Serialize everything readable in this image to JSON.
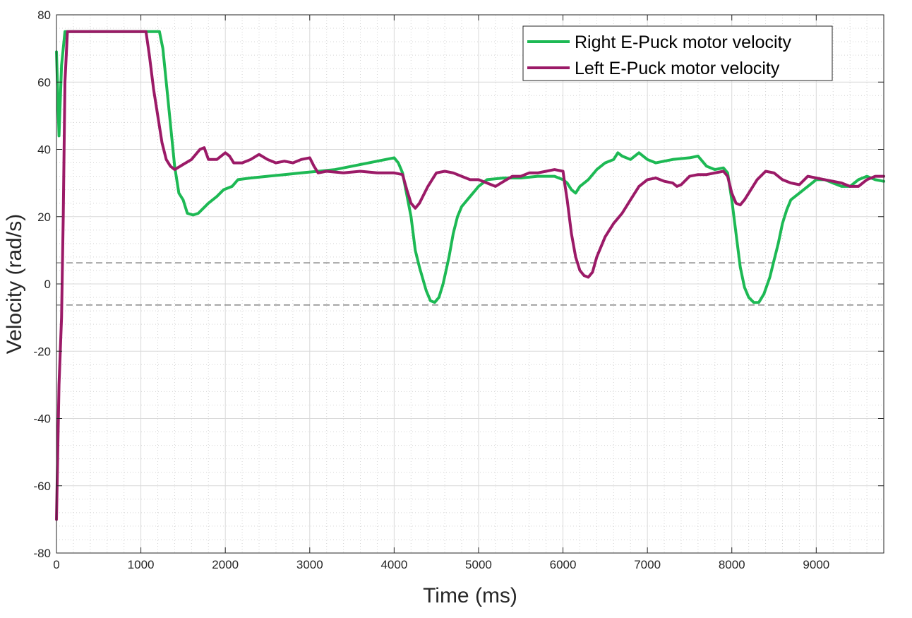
{
  "chart_data": {
    "type": "line",
    "title": "",
    "xlabel": "Time (ms)",
    "ylabel": "Velocity (rad/s)",
    "xlim": [
      0,
      9800
    ],
    "ylim": [
      -80,
      80
    ],
    "x_ticks": [
      0,
      1000,
      2000,
      3000,
      4000,
      5000,
      6000,
      7000,
      8000,
      9000
    ],
    "y_ticks": [
      -80,
      -60,
      -40,
      -20,
      0,
      20,
      40,
      60,
      80
    ],
    "grid": true,
    "minor_grid": true,
    "legend_position": "top-right",
    "reference_lines": [
      6.28,
      -6.28
    ],
    "reference_line_color": "#6e6e6e",
    "series": [
      {
        "name": "Right E-Puck motor velocity",
        "color": "#1db954",
        "points": [
          [
            0,
            69
          ],
          [
            30,
            44
          ],
          [
            60,
            65
          ],
          [
            100,
            75
          ],
          [
            1220,
            75
          ],
          [
            1260,
            70
          ],
          [
            1320,
            55
          ],
          [
            1400,
            35
          ],
          [
            1450,
            27
          ],
          [
            1500,
            25
          ],
          [
            1550,
            21
          ],
          [
            1620,
            20.5
          ],
          [
            1680,
            21
          ],
          [
            1720,
            22
          ],
          [
            1800,
            24
          ],
          [
            1900,
            26
          ],
          [
            1980,
            28
          ],
          [
            2080,
            29
          ],
          [
            2150,
            31
          ],
          [
            2300,
            31.5
          ],
          [
            2500,
            32
          ],
          [
            2700,
            32.5
          ],
          [
            2900,
            33
          ],
          [
            3100,
            33.5
          ],
          [
            3300,
            34
          ],
          [
            3500,
            35
          ],
          [
            3700,
            36
          ],
          [
            3900,
            37
          ],
          [
            4000,
            37.5
          ],
          [
            4050,
            36
          ],
          [
            4100,
            33
          ],
          [
            4200,
            20
          ],
          [
            4250,
            10
          ],
          [
            4300,
            5
          ],
          [
            4380,
            -2
          ],
          [
            4430,
            -5
          ],
          [
            4480,
            -5.5
          ],
          [
            4530,
            -4
          ],
          [
            4580,
            0
          ],
          [
            4650,
            8
          ],
          [
            4700,
            15
          ],
          [
            4750,
            20
          ],
          [
            4800,
            23
          ],
          [
            4900,
            26
          ],
          [
            5000,
            29
          ],
          [
            5100,
            31
          ],
          [
            5300,
            31.5
          ],
          [
            5500,
            31.5
          ],
          [
            5700,
            32
          ],
          [
            5900,
            32
          ],
          [
            6000,
            31
          ],
          [
            6050,
            30
          ],
          [
            6100,
            28
          ],
          [
            6150,
            27
          ],
          [
            6200,
            29
          ],
          [
            6300,
            31
          ],
          [
            6400,
            34
          ],
          [
            6500,
            36
          ],
          [
            6600,
            37
          ],
          [
            6650,
            39
          ],
          [
            6700,
            38
          ],
          [
            6800,
            37
          ],
          [
            6900,
            39
          ],
          [
            7000,
            37
          ],
          [
            7100,
            36
          ],
          [
            7300,
            37
          ],
          [
            7500,
            37.5
          ],
          [
            7600,
            38
          ],
          [
            7700,
            35
          ],
          [
            7800,
            34
          ],
          [
            7900,
            34.5
          ],
          [
            7950,
            33
          ],
          [
            8000,
            25
          ],
          [
            8050,
            15
          ],
          [
            8100,
            5
          ],
          [
            8150,
            -1
          ],
          [
            8200,
            -4
          ],
          [
            8260,
            -5.5
          ],
          [
            8320,
            -5.5
          ],
          [
            8380,
            -3
          ],
          [
            8450,
            2
          ],
          [
            8500,
            7
          ],
          [
            8550,
            12
          ],
          [
            8600,
            18
          ],
          [
            8650,
            22
          ],
          [
            8700,
            25
          ],
          [
            8800,
            27
          ],
          [
            8900,
            29
          ],
          [
            9000,
            31
          ],
          [
            9100,
            31
          ],
          [
            9200,
            30
          ],
          [
            9300,
            29
          ],
          [
            9400,
            29
          ],
          [
            9500,
            31
          ],
          [
            9600,
            32
          ],
          [
            9700,
            31
          ],
          [
            9800,
            30.5
          ]
        ]
      },
      {
        "name": "Left E-Puck motor velocity",
        "color": "#9b1a67",
        "points": [
          [
            0,
            -70
          ],
          [
            30,
            -30
          ],
          [
            60,
            -10
          ],
          [
            80,
            20
          ],
          [
            100,
            60
          ],
          [
            130,
            75
          ],
          [
            1060,
            75
          ],
          [
            1100,
            68
          ],
          [
            1150,
            58
          ],
          [
            1200,
            50
          ],
          [
            1250,
            42
          ],
          [
            1300,
            37
          ],
          [
            1350,
            35
          ],
          [
            1400,
            34
          ],
          [
            1500,
            35.5
          ],
          [
            1600,
            37
          ],
          [
            1700,
            40
          ],
          [
            1750,
            40.5
          ],
          [
            1800,
            37
          ],
          [
            1900,
            37
          ],
          [
            2000,
            39
          ],
          [
            2050,
            38
          ],
          [
            2100,
            36
          ],
          [
            2200,
            36
          ],
          [
            2300,
            37
          ],
          [
            2400,
            38.5
          ],
          [
            2500,
            37
          ],
          [
            2600,
            36
          ],
          [
            2700,
            36.5
          ],
          [
            2800,
            36
          ],
          [
            2900,
            37
          ],
          [
            3000,
            37.5
          ],
          [
            3050,
            35
          ],
          [
            3100,
            33
          ],
          [
            3200,
            33.5
          ],
          [
            3400,
            33
          ],
          [
            3600,
            33.5
          ],
          [
            3800,
            33
          ],
          [
            4000,
            33
          ],
          [
            4100,
            32.5
          ],
          [
            4150,
            28
          ],
          [
            4200,
            24
          ],
          [
            4250,
            22.5
          ],
          [
            4300,
            24
          ],
          [
            4400,
            29
          ],
          [
            4500,
            33
          ],
          [
            4600,
            33.5
          ],
          [
            4700,
            33
          ],
          [
            4800,
            32
          ],
          [
            4900,
            31
          ],
          [
            5000,
            31
          ],
          [
            5100,
            30
          ],
          [
            5200,
            29
          ],
          [
            5300,
            30.5
          ],
          [
            5400,
            32
          ],
          [
            5500,
            32
          ],
          [
            5600,
            33
          ],
          [
            5700,
            33
          ],
          [
            5800,
            33.5
          ],
          [
            5900,
            34
          ],
          [
            6000,
            33.5
          ],
          [
            6020,
            30
          ],
          [
            6050,
            25
          ],
          [
            6100,
            15
          ],
          [
            6150,
            8
          ],
          [
            6200,
            4
          ],
          [
            6250,
            2.5
          ],
          [
            6300,
            2
          ],
          [
            6350,
            3.5
          ],
          [
            6400,
            8
          ],
          [
            6500,
            14
          ],
          [
            6550,
            16
          ],
          [
            6600,
            18
          ],
          [
            6700,
            21
          ],
          [
            6800,
            25
          ],
          [
            6900,
            29
          ],
          [
            7000,
            31
          ],
          [
            7100,
            31.5
          ],
          [
            7200,
            30.5
          ],
          [
            7300,
            30
          ],
          [
            7350,
            29
          ],
          [
            7400,
            29.5
          ],
          [
            7500,
            32
          ],
          [
            7600,
            32.5
          ],
          [
            7700,
            32.5
          ],
          [
            7800,
            33
          ],
          [
            7900,
            33.5
          ],
          [
            7950,
            32
          ],
          [
            8000,
            27
          ],
          [
            8050,
            24
          ],
          [
            8100,
            23.5
          ],
          [
            8150,
            25
          ],
          [
            8200,
            27
          ],
          [
            8300,
            31
          ],
          [
            8400,
            33.5
          ],
          [
            8500,
            33
          ],
          [
            8600,
            31
          ],
          [
            8700,
            30
          ],
          [
            8800,
            29.5
          ],
          [
            8900,
            32
          ],
          [
            9000,
            31.5
          ],
          [
            9100,
            31
          ],
          [
            9200,
            30.5
          ],
          [
            9300,
            30
          ],
          [
            9400,
            29
          ],
          [
            9500,
            29
          ],
          [
            9600,
            31
          ],
          [
            9700,
            32
          ],
          [
            9800,
            32
          ]
        ]
      }
    ]
  }
}
